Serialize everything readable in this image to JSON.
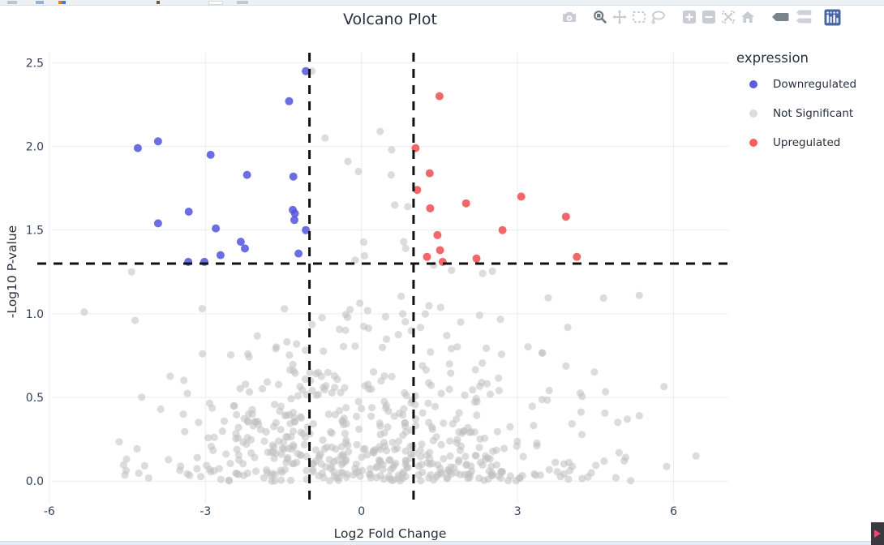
{
  "header": {
    "title": "Volcano Plot"
  },
  "modebar": {
    "icons": [
      "camera",
      "zoom",
      "pan",
      "box-select",
      "lasso",
      "zoom-in",
      "zoom-out",
      "autoscale",
      "reset-home",
      "toggle-hover-closest",
      "toggle-hover-compare",
      "plotly-logo"
    ],
    "color_inactive": "#c9cdd3",
    "color_active": "#6e7884",
    "logo_color": "#4a66a0"
  },
  "legend": {
    "title": "expression",
    "items": [
      {
        "label": "Downregulated",
        "color": "#5c5ce0"
      },
      {
        "label": "Not Significant",
        "color": "#dcdcdc"
      },
      {
        "label": "Upregulated",
        "color": "#f66161"
      }
    ]
  },
  "chart_data": {
    "type": "scatter",
    "title": "Volcano Plot",
    "xlabel": "Log2 Fold Change",
    "ylabel": "-Log10 P-value",
    "xlim": [
      -5.95,
      7.05
    ],
    "ylim": [
      -0.13,
      2.56
    ],
    "xticks": [
      -6,
      -3,
      0,
      3,
      6
    ],
    "xtick_labels": [
      "-6",
      "-3",
      "0",
      "3",
      "6"
    ],
    "yticks": [
      0,
      0.5,
      1,
      1.5,
      2,
      2.5
    ],
    "ytick_labels": [
      "0.0",
      "0.5",
      "1.0",
      "1.5",
      "2.0",
      "2.5"
    ],
    "grid": true,
    "grid_color": "#e9edf1",
    "legend_position": "right",
    "thresholds": {
      "x": [
        -1,
        1
      ],
      "y": 1.3,
      "line_color": "#111111",
      "line_style": "dashed"
    },
    "series": [
      {
        "name": "Downregulated",
        "color": "#5353de",
        "points": [
          [
            -1.07,
            2.45
          ],
          [
            -1.39,
            2.27
          ],
          [
            -3.91,
            2.03
          ],
          [
            -4.3,
            1.99
          ],
          [
            -2.9,
            1.95
          ],
          [
            -2.2,
            1.83
          ],
          [
            -1.31,
            1.82
          ],
          [
            -1.32,
            1.62
          ],
          [
            -3.32,
            1.61
          ],
          [
            -1.28,
            1.6
          ],
          [
            -1.29,
            1.56
          ],
          [
            -3.91,
            1.54
          ],
          [
            -2.8,
            1.51
          ],
          [
            -1.07,
            1.5
          ],
          [
            -2.32,
            1.43
          ],
          [
            -2.24,
            1.39
          ],
          [
            -1.21,
            1.36
          ],
          [
            -2.71,
            1.35
          ],
          [
            -3.33,
            1.31
          ],
          [
            -3.02,
            1.31
          ]
        ]
      },
      {
        "name": "Not Significant",
        "color": "#bfbfbf",
        "points": [
          [
            -0.95,
            2.45
          ],
          [
            0.36,
            2.09
          ],
          [
            -0.7,
            2.05
          ],
          [
            0.58,
            1.98
          ],
          [
            -0.26,
            1.91
          ],
          [
            -0.06,
            1.85
          ],
          [
            0.57,
            1.83
          ],
          [
            0.64,
            1.65
          ],
          [
            0.89,
            1.64
          ],
          [
            0.81,
            1.43
          ],
          [
            0.85,
            1.39
          ],
          [
            -0.12,
            1.32
          ],
          [
            1.39,
            1.29
          ],
          [
            1.73,
            1.26
          ],
          [
            -4.42,
            1.25
          ],
          [
            -5.33,
            1.01
          ],
          [
            5.34,
            1.11
          ],
          [
            5.34,
            0.39
          ],
          [
            5.11,
            0.37
          ],
          [
            4.95,
            0.17
          ],
          [
            5.05,
            0.12
          ],
          [
            6.43,
            0.15
          ],
          [
            4.89,
            0.02
          ]
        ],
        "generated_cloud": {
          "count": 580,
          "seed": 42,
          "x_mean": 0.15,
          "x_sd": 2.05,
          "x_min": -5.9,
          "x_max": 6.55,
          "y_scale": 0.75,
          "y_max": 2.4,
          "sig_x": 1.0,
          "sig_y": 1.3,
          "note": "dense non-significant cloud, y mostly 0-1.3, only |x|<1 points exceed y=1.3"
        }
      },
      {
        "name": "Upregulated",
        "color": "#f04d4d",
        "points": [
          [
            1.5,
            2.3
          ],
          [
            1.04,
            1.99
          ],
          [
            1.31,
            1.84
          ],
          [
            1.07,
            1.74
          ],
          [
            3.07,
            1.7
          ],
          [
            2.01,
            1.66
          ],
          [
            1.32,
            1.63
          ],
          [
            3.93,
            1.58
          ],
          [
            2.71,
            1.5
          ],
          [
            1.46,
            1.47
          ],
          [
            1.51,
            1.38
          ],
          [
            4.14,
            1.34
          ],
          [
            1.26,
            1.34
          ],
          [
            2.21,
            1.33
          ],
          [
            1.56,
            1.31
          ]
        ]
      }
    ]
  }
}
